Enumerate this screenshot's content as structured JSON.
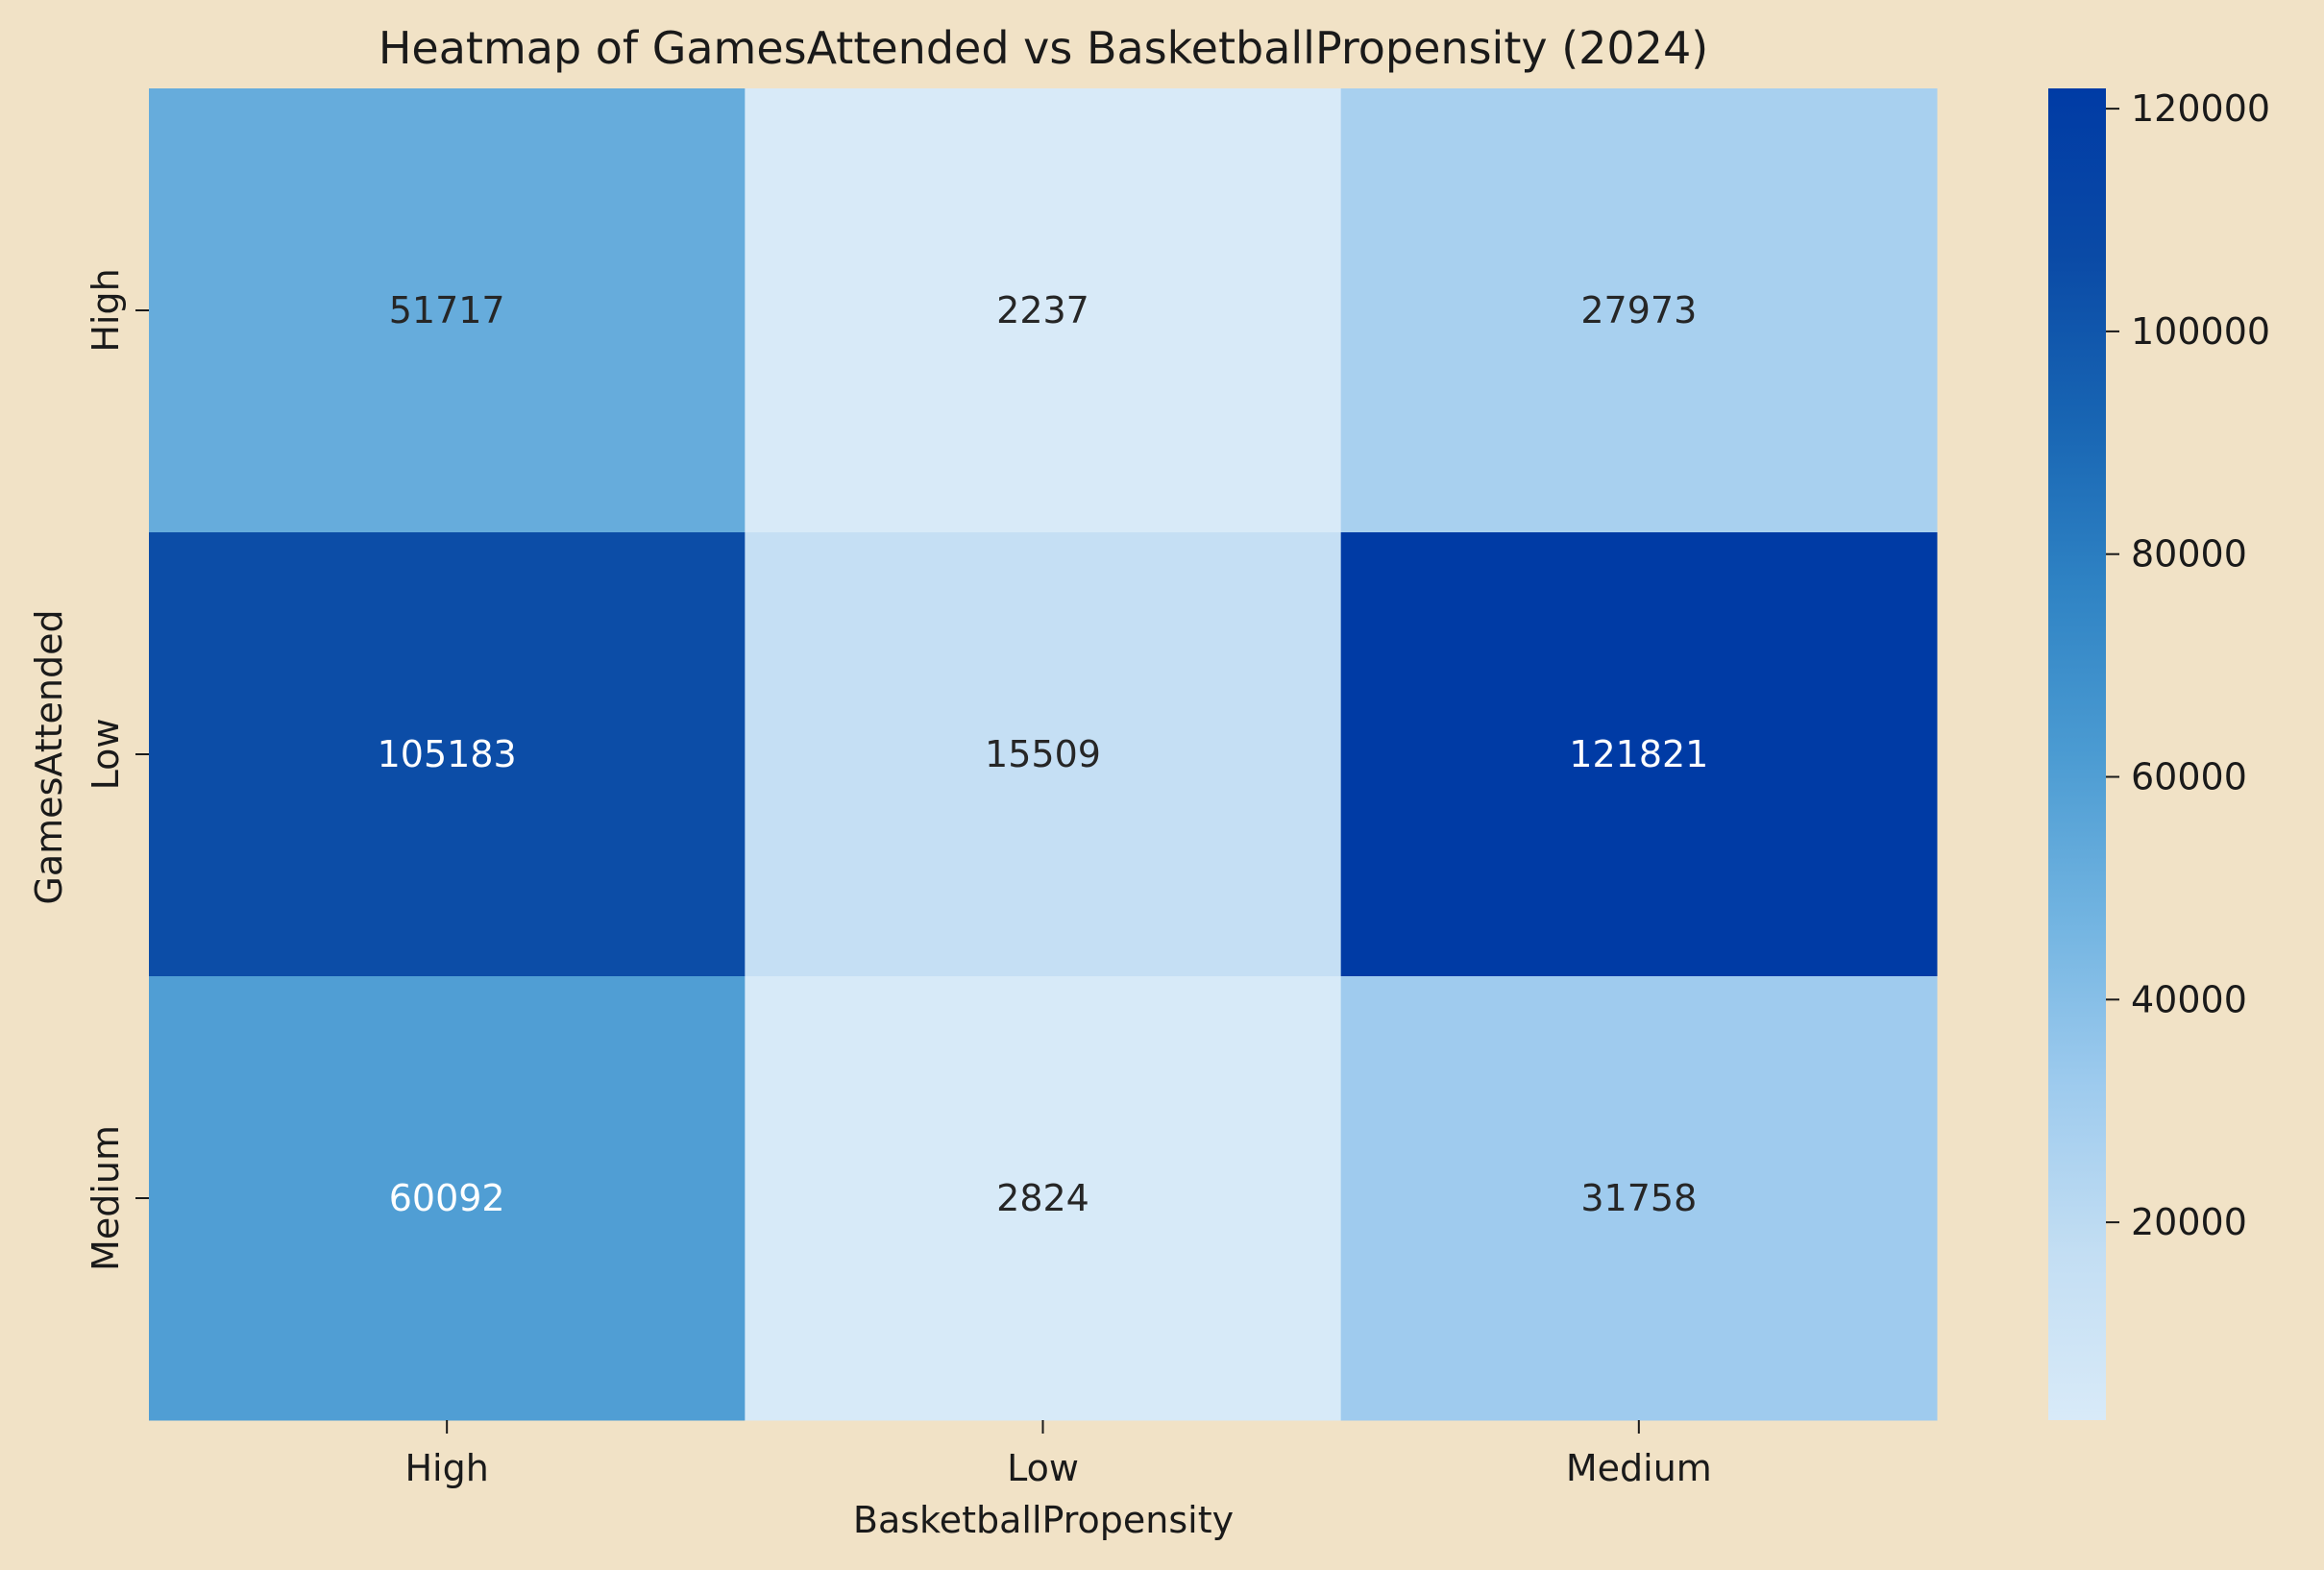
{
  "chart_data": {
    "type": "heatmap",
    "title": "Heatmap of GamesAttended vs BasketballPropensity (2024)",
    "xlabel": "BasketballPropensity",
    "ylabel": "GamesAttended",
    "x_categories": [
      "High",
      "Low",
      "Medium"
    ],
    "y_categories": [
      "High",
      "Low",
      "Medium"
    ],
    "values": [
      [
        51717,
        2237,
        27973
      ],
      [
        105183,
        15509,
        121821
      ],
      [
        60092,
        2824,
        31758
      ]
    ],
    "colorbar": {
      "min": 2237,
      "max": 121821,
      "ticks": [
        20000,
        40000,
        60000,
        80000,
        100000,
        120000
      ],
      "colormap": [
        "#d8eaf8",
        "#c3def3",
        "#9ecbee",
        "#72b4e1",
        "#4b9bd2",
        "#2f83c4",
        "#1865b3",
        "#0a4aa6",
        "#003ba5"
      ]
    },
    "grid": false,
    "legend": "colorbar-right"
  }
}
